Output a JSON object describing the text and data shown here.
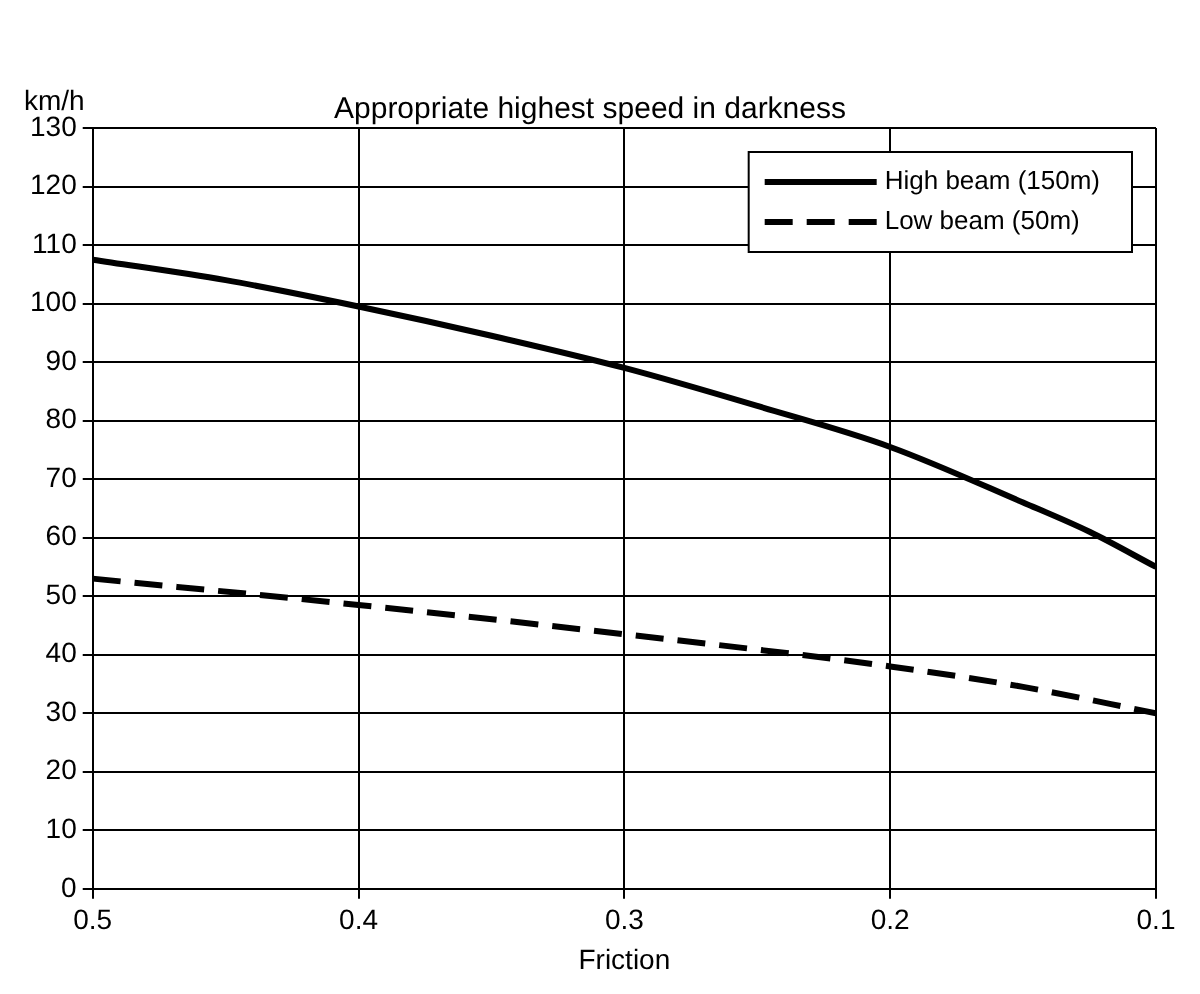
{
  "chart_data": {
    "type": "line",
    "title": "Appropriate highest speed in darkness",
    "xlabel": "Friction",
    "ylabel": "km/h",
    "xlim": [
      0.5,
      0.1
    ],
    "xticks": [
      0.5,
      0.4,
      0.3,
      0.2,
      0.1
    ],
    "ylim": [
      0,
      130
    ],
    "yticks": [
      0,
      10,
      20,
      30,
      40,
      50,
      60,
      70,
      80,
      90,
      100,
      110,
      120,
      130
    ],
    "grid": true,
    "legend": "top right",
    "marker": "none",
    "series": [
      {
        "name": "High beam (150m)",
        "color": "#000000",
        "line_style": "solid",
        "x": [
          0.5,
          0.45,
          0.4,
          0.35,
          0.3,
          0.25,
          0.2,
          0.15,
          0.125,
          0.1
        ],
        "values": [
          107.5,
          104,
          99.5,
          94.5,
          89,
          82.5,
          75.5,
          66,
          61,
          55
        ]
      },
      {
        "name": "Low beam (50m)",
        "color": "#000000",
        "line_style": "dashed",
        "x": [
          0.5,
          0.4,
          0.3,
          0.2,
          0.15,
          0.1
        ],
        "values": [
          53,
          48.5,
          43.5,
          38,
          34.5,
          30
        ]
      }
    ]
  }
}
